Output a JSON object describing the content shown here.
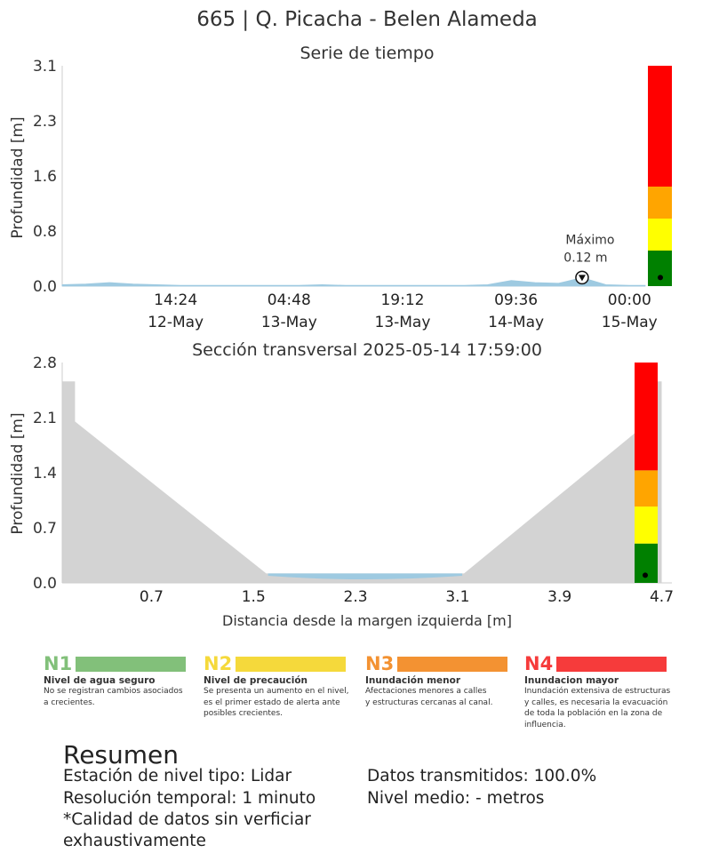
{
  "page_title": "665 | Q. Picacha - Belen Alameda",
  "chart_data": [
    {
      "type": "area",
      "title": "Serie de tiempo",
      "ylabel": "Profundidad [m]",
      "xlabel": "",
      "ylim": [
        0.0,
        3.1
      ],
      "y_ticks": [
        "0.0",
        "0.8",
        "1.6",
        "2.3",
        "3.1"
      ],
      "x_tick_labels": [
        {
          "time": "14:24",
          "date": "12-May"
        },
        {
          "time": "04:48",
          "date": "13-May"
        },
        {
          "time": "19:12",
          "date": "13-May"
        },
        {
          "time": "09:36",
          "date": "14-May"
        },
        {
          "time": "00:00",
          "date": "15-May"
        }
      ],
      "xlim": [
        "2025-05-12 00:00",
        "2025-05-15 02:00"
      ],
      "grid": false,
      "series": [
        {
          "color": "#9ecae1",
          "x": [
            "2025-05-12 00:00",
            "2025-05-12 03:00",
            "2025-05-12 06:00",
            "2025-05-12 09:00",
            "2025-05-12 12:00",
            "2025-05-12 15:00",
            "2025-05-12 18:00",
            "2025-05-12 21:00",
            "2025-05-13 00:00",
            "2025-05-13 03:00",
            "2025-05-13 06:00",
            "2025-05-13 09:00",
            "2025-05-13 12:00",
            "2025-05-13 15:00",
            "2025-05-13 18:00",
            "2025-05-13 21:00",
            "2025-05-14 00:00",
            "2025-05-14 03:00",
            "2025-05-14 06:00",
            "2025-05-14 09:00",
            "2025-05-14 12:00",
            "2025-05-14 15:00",
            "2025-05-14 17:59",
            "2025-05-14 21:00",
            "2025-05-15 00:00",
            "2025-05-15 02:00"
          ],
          "y": [
            0.02,
            0.03,
            0.05,
            0.03,
            0.02,
            0.01,
            0.01,
            0.01,
            0.01,
            0.01,
            0.01,
            0.02,
            0.01,
            0.01,
            0.01,
            0.01,
            0.01,
            0.01,
            0.02,
            0.08,
            0.05,
            0.04,
            0.12,
            0.02,
            0.01,
            0.01
          ]
        }
      ],
      "annotation": {
        "label": "Máximo",
        "value": "0.12 m",
        "x": "2025-05-14 17:59",
        "y": 0.12
      },
      "alert_levels": {
        "levels": [
          {
            "name": "N1",
            "from": 0.0,
            "to": 0.5,
            "color": "#008000"
          },
          {
            "name": "N2",
            "from": 0.5,
            "to": 0.95,
            "color": "#ffff00"
          },
          {
            "name": "N3",
            "from": 0.95,
            "to": 1.4,
            "color": "#ffa500"
          },
          {
            "name": "N4",
            "from": 1.4,
            "to": 3.1,
            "color": "#ff0000"
          }
        ],
        "current": 0.12
      }
    },
    {
      "type": "area",
      "title": "Sección transversal 2025-05-14 17:59:00",
      "xlabel": "Distancia desde la margen izquierda [m]",
      "ylabel": "Profundidad [m]",
      "ylim": [
        0.0,
        2.8
      ],
      "xlim": [
        0.0,
        4.78
      ],
      "y_ticks": [
        "0.0",
        "0.7",
        "1.4",
        "2.1",
        "2.8"
      ],
      "x_ticks": [
        "0.7",
        "1.5",
        "2.3",
        "3.1",
        "3.9",
        "4.7"
      ],
      "grid": false,
      "section_profile": {
        "x": [
          0.0,
          0.1,
          0.1,
          1.6,
          3.15,
          4.6,
          4.6,
          4.7
        ],
        "y": [
          2.56,
          2.56,
          2.05,
          0.12,
          0.12,
          2.05,
          2.56,
          2.56
        ]
      },
      "water_level": 0.12,
      "water_extent": [
        1.6,
        3.15
      ],
      "alert_levels": {
        "levels": [
          {
            "name": "N1",
            "from": 0.0,
            "to": 0.5,
            "color": "#008000"
          },
          {
            "name": "N2",
            "from": 0.5,
            "to": 0.97,
            "color": "#ffff00"
          },
          {
            "name": "N3",
            "from": 0.97,
            "to": 1.43,
            "color": "#ffa500"
          },
          {
            "name": "N4",
            "from": 1.43,
            "to": 2.8,
            "color": "#ff0000"
          }
        ],
        "current": 0.12
      }
    }
  ],
  "legend": [
    {
      "code": "N1",
      "color": "#82c07a",
      "title": "Nivel de agua seguro",
      "desc": [
        "No se registran cambios asociados",
        "a crecientes."
      ]
    },
    {
      "code": "N2",
      "color": "#f5d93b",
      "title": "Nivel de precaución",
      "desc": [
        "Se presenta un aumento en el nivel,",
        "es el primer estado de alerta ante",
        "posibles crecientes."
      ]
    },
    {
      "code": "N3",
      "color": "#f39232",
      "title": "Inundación menor",
      "desc": [
        "Afectaciones menores a calles",
        "y estructuras cercanas al canal."
      ]
    },
    {
      "code": "N4",
      "color": "#f63b3b",
      "title": "Inundacion mayor",
      "desc": [
        "Inundación extensiva de estructuras",
        "y calles, es necesaria la evacuación",
        "de toda la población en la zona de",
        "influencia."
      ]
    }
  ],
  "summary": {
    "title": "Resumen",
    "left": [
      "Estación de nivel tipo: Lidar",
      "Resolución temporal: 1 minuto",
      "*Calidad de datos sin verficiar",
      "exhaustivamente"
    ],
    "right": [
      "Datos transmitidos: 100.0%",
      "Nivel medio: - metros"
    ]
  }
}
